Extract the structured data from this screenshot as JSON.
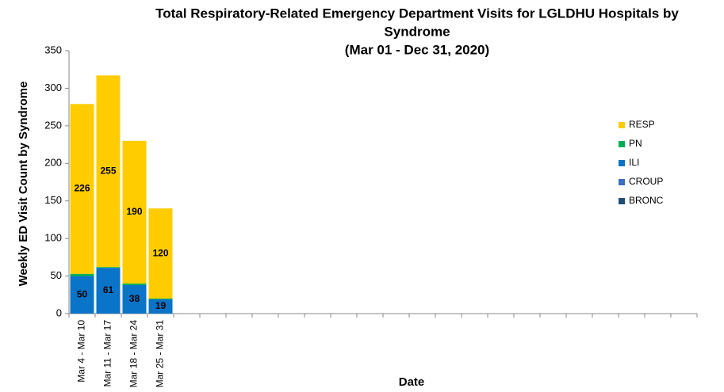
{
  "chart_data": {
    "type": "stacked_bar",
    "title_lines": [
      "Total Respiratory-Related Emergency Department Visits for LGLDHU Hospitals by",
      "Syndrome",
      "(Mar 01 - Dec 31, 2020)"
    ],
    "y_label": "Weekly ED Visit Count by Syndrome",
    "x_label": "Date",
    "categories": [
      "Mar 4 - Mar 10",
      "Mar 11 - Mar 17",
      "Mar 18 - Mar 24",
      "Mar 25 - Mar 31",
      null,
      null,
      null,
      null,
      null,
      null,
      null,
      null,
      null,
      null,
      null,
      null,
      null,
      null,
      null,
      null,
      null,
      null,
      null,
      null
    ],
    "series": [
      {
        "name": "BRONC",
        "color": "#1f4e79",
        "values": [
          0,
          0,
          0,
          0,
          null,
          null,
          null,
          null,
          null,
          null,
          null,
          null,
          null,
          null,
          null,
          null,
          null,
          null,
          null,
          null,
          null,
          null,
          null,
          null
        ]
      },
      {
        "name": "CROUP",
        "color": "#3a6fc4",
        "values": [
          0,
          0,
          0,
          0,
          null,
          null,
          null,
          null,
          null,
          null,
          null,
          null,
          null,
          null,
          null,
          null,
          null,
          null,
          null,
          null,
          null,
          null,
          null,
          null
        ]
      },
      {
        "name": "ILI",
        "color": "#0a74c8",
        "values": [
          50,
          61,
          38,
          19,
          null,
          null,
          null,
          null,
          null,
          null,
          null,
          null,
          null,
          null,
          null,
          null,
          null,
          null,
          null,
          null,
          null,
          null,
          null,
          null
        ]
      },
      {
        "name": "PN",
        "color": "#00b050",
        "values": [
          3,
          1,
          2,
          1,
          null,
          null,
          null,
          null,
          null,
          null,
          null,
          null,
          null,
          null,
          null,
          null,
          null,
          null,
          null,
          null,
          null,
          null,
          null,
          null
        ]
      },
      {
        "name": "RESP",
        "color": "#ffcc00",
        "values": [
          226,
          255,
          190,
          120,
          null,
          null,
          null,
          null,
          null,
          null,
          null,
          null,
          null,
          null,
          null,
          null,
          null,
          null,
          null,
          null,
          null,
          null,
          null,
          null
        ]
      }
    ],
    "ylim": [
      0,
      350
    ],
    "yticks": [
      0,
      50,
      100,
      150,
      200,
      250,
      300,
      350
    ],
    "grid": false,
    "legend": "right"
  }
}
